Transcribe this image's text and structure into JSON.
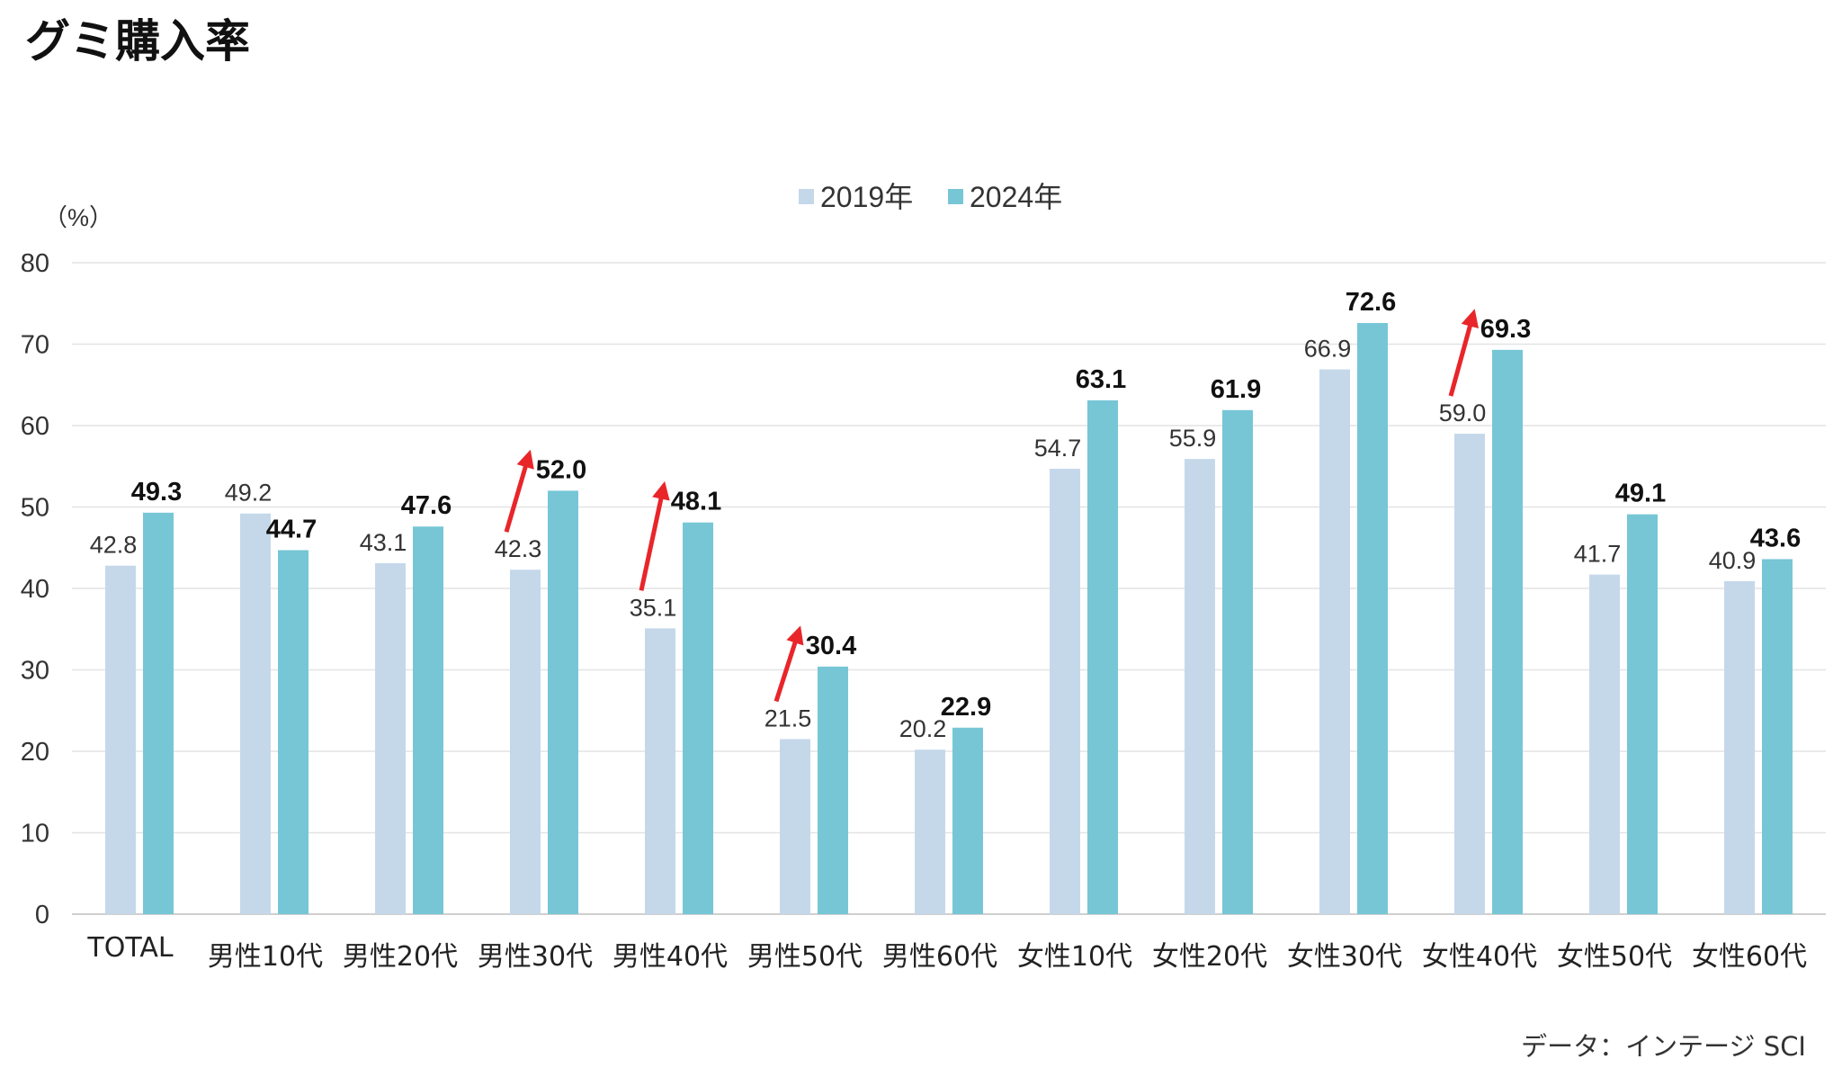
{
  "title": "グミ購入率",
  "source": "データ：インテージ SCI",
  "chart_data": {
    "type": "bar",
    "unit_label": "（%）",
    "ylim": [
      0,
      80
    ],
    "yticks": [
      0,
      10,
      20,
      30,
      40,
      50,
      60,
      70,
      80
    ],
    "grid": true,
    "legend_position": "top-center",
    "categories": [
      "TOTAL",
      "男性10代",
      "男性20代",
      "男性30代",
      "男性40代",
      "男性50代",
      "男性60代",
      "女性10代",
      "女性20代",
      "女性30代",
      "女性40代",
      "女性50代",
      "女性60代"
    ],
    "series": [
      {
        "name": "2019年",
        "color": "#c5d8ea",
        "bold_labels": false,
        "values": [
          42.8,
          49.2,
          43.1,
          42.3,
          35.1,
          21.5,
          20.2,
          54.7,
          55.9,
          66.9,
          59.0,
          41.7,
          40.9
        ]
      },
      {
        "name": "2024年",
        "color": "#76c6d6",
        "bold_labels": true,
        "values": [
          49.3,
          44.7,
          47.6,
          52.0,
          48.1,
          30.4,
          22.9,
          63.1,
          61.9,
          72.6,
          69.3,
          49.1,
          43.6
        ]
      }
    ],
    "highlight_arrows": {
      "color": "#e8262a",
      "categories": [
        "男性30代",
        "男性40代",
        "男性50代",
        "女性40代"
      ]
    }
  }
}
